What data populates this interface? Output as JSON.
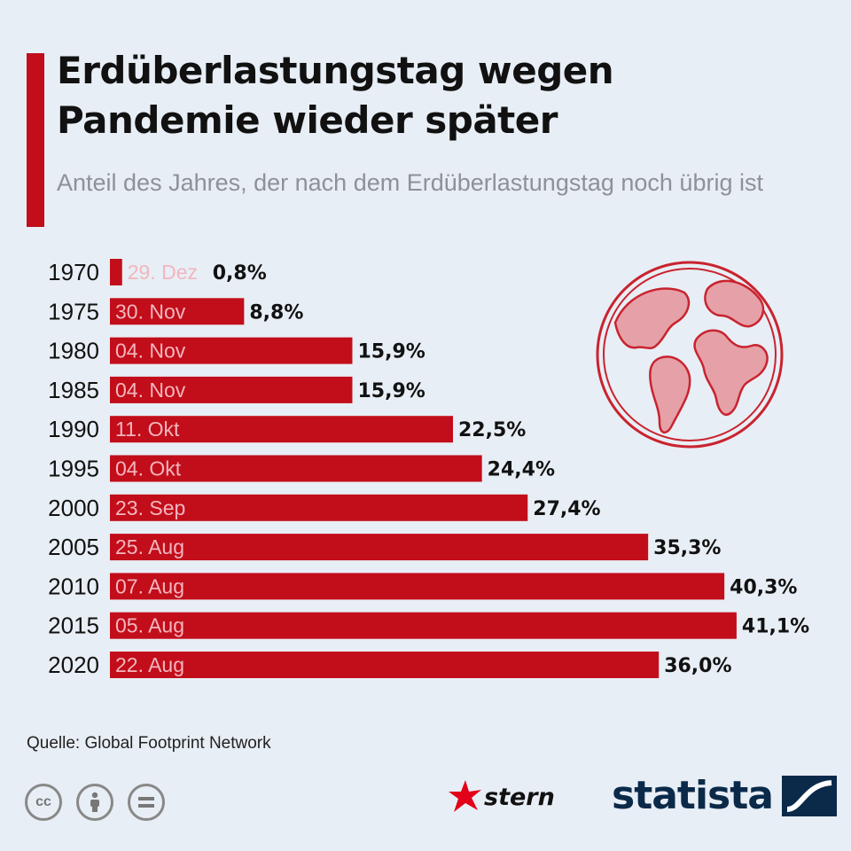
{
  "header": {
    "title": "Erdüberlastungstag wegen Pandemie wieder später",
    "subtitle": "Anteil des Jahres, der nach dem Erdüberlastungstag noch übrig ist"
  },
  "chart_data": {
    "type": "bar",
    "orientation": "horizontal",
    "categories": [
      "1970",
      "1975",
      "1980",
      "1985",
      "1990",
      "1995",
      "2000",
      "2005",
      "2010",
      "2015",
      "2020"
    ],
    "dates": [
      "29. Dez",
      "30. Nov",
      "04. Nov",
      "04. Nov",
      "11. Okt",
      "04. Okt",
      "23. Sep",
      "25. Aug",
      "07. Aug",
      "05. Aug",
      "22. Aug"
    ],
    "values": [
      0.8,
      8.8,
      15.9,
      15.9,
      22.5,
      24.4,
      27.4,
      35.3,
      40.3,
      41.1,
      36.0
    ],
    "value_labels": [
      "0,8%",
      "8,8%",
      "15,9%",
      "15,9%",
      "22,5%",
      "24,4%",
      "27,4%",
      "35,3%",
      "40,3%",
      "41,1%",
      "36,0%"
    ],
    "xlim": [
      0,
      45
    ],
    "grid": false,
    "bar_color": "#c20e1a"
  },
  "footer": {
    "source": "Quelle: Global Footprint Network",
    "license_icons": [
      "cc-icon",
      "attribution-icon",
      "no-derivatives-icon"
    ],
    "stern_logo": "stern",
    "statista_logo": "statista"
  },
  "colors": {
    "accent": "#c20e1a",
    "background": "#e8eef5",
    "subtitle": "#8e9197",
    "date_on_bar": "#f3b6bf"
  }
}
